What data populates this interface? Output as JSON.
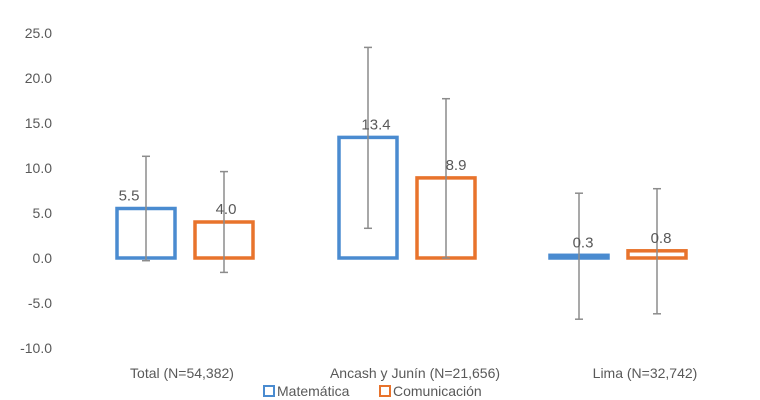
{
  "chart_data": {
    "type": "bar",
    "categories": [
      "Total (N=54,382)",
      "Ancash y Junín (N=21,656)",
      "Lima (N=32,742)"
    ],
    "series": [
      {
        "name": "Matemática",
        "color": "#4a8bd0",
        "values": [
          5.5,
          13.4,
          0.3
        ],
        "labels": [
          "5.5",
          "13.4",
          "0.3"
        ],
        "error_low": [
          -0.3,
          3.3,
          -6.8
        ],
        "error_high": [
          11.3,
          23.4,
          7.2
        ]
      },
      {
        "name": "Comunicación",
        "color": "#e8732c",
        "values": [
          4.0,
          8.9,
          0.8
        ],
        "labels": [
          "4.0",
          "8.9",
          "0.8"
        ],
        "error_low": [
          -1.6,
          0.0,
          -6.2
        ],
        "error_high": [
          9.6,
          17.7,
          7.7
        ]
      }
    ],
    "yticks": [
      "25.0",
      "20.0",
      "15.0",
      "10.0",
      "5.0",
      "0.0",
      "-5.0",
      "-10.0"
    ],
    "ylim": [
      -10,
      25
    ],
    "grid": false,
    "legend": "bottom"
  }
}
